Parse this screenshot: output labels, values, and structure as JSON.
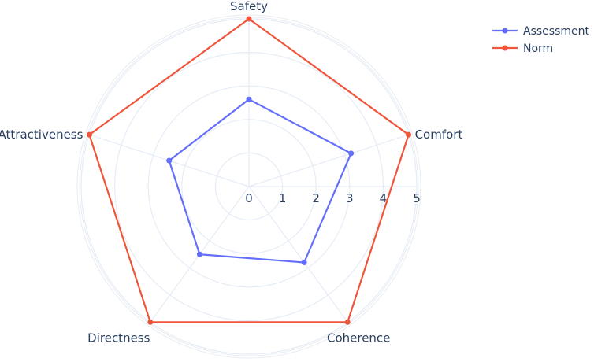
{
  "chart_data": {
    "type": "radar",
    "categories": [
      "Safety",
      "Comfort",
      "Coherence",
      "Directness",
      "Attractiveness"
    ],
    "series": [
      {
        "name": "Assessment",
        "values": [
          2.6,
          3.2,
          2.8,
          2.5,
          2.5
        ],
        "color": "#636efa"
      },
      {
        "name": "Norm",
        "values": [
          5,
          5,
          5,
          5,
          5
        ],
        "color": "#ef553b"
      }
    ],
    "radial_range": [
      0,
      5
    ],
    "radial_ticks": [
      "0",
      "1",
      "2",
      "3",
      "4",
      "5"
    ],
    "grid": true,
    "legend": "top-right"
  }
}
